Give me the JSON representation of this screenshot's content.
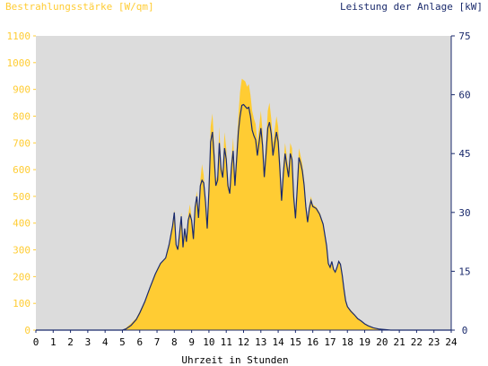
{
  "colors": {
    "irradiance": "#ffcc33",
    "power": "#1a2a6c",
    "plot_bg": "#dcdcdc",
    "page_bg": "#ffffff",
    "zero_line": "#1a2a6c"
  },
  "chart_data": {
    "type": "area",
    "title_left": "Bestrahlungsstärke [W/qm]",
    "title_right": "Leistung der Anlage [kW]",
    "xlabel": "Uhrzeit in Stunden",
    "xlim": [
      0,
      24
    ],
    "ylim_left": [
      0,
      1100
    ],
    "ylim_right": [
      0,
      75
    ],
    "x_ticks": [
      "0",
      "1",
      "2",
      "3",
      "4",
      "5",
      "6",
      "7",
      "8",
      "9",
      "10",
      "11",
      "12",
      "13",
      "14",
      "15",
      "16",
      "17",
      "18",
      "19",
      "20",
      "21",
      "22",
      "23",
      "24"
    ],
    "y_left_ticks": [
      "0",
      "100",
      "200",
      "300",
      "400",
      "500",
      "600",
      "700",
      "800",
      "900",
      "1000",
      "1100"
    ],
    "y_right_ticks": [
      "0",
      "15",
      "30",
      "45",
      "60",
      "75"
    ],
    "grid": false,
    "series": [
      {
        "name": "Bestrahlungsstärke",
        "axis": "left",
        "style": "area",
        "points": [
          [
            0,
            0
          ],
          [
            5.0,
            0
          ],
          [
            5.2,
            8
          ],
          [
            5.5,
            25
          ],
          [
            5.8,
            45
          ],
          [
            6.0,
            70
          ],
          [
            6.3,
            110
          ],
          [
            6.6,
            160
          ],
          [
            6.9,
            210
          ],
          [
            7.2,
            250
          ],
          [
            7.5,
            270
          ],
          [
            7.7,
            320
          ],
          [
            7.9,
            390
          ],
          [
            8.0,
            450
          ],
          [
            8.1,
            320
          ],
          [
            8.2,
            300
          ],
          [
            8.3,
            360
          ],
          [
            8.4,
            440
          ],
          [
            8.5,
            310
          ],
          [
            8.6,
            380
          ],
          [
            8.7,
            330
          ],
          [
            8.8,
            430
          ],
          [
            8.9,
            470
          ],
          [
            9.0,
            420
          ],
          [
            9.1,
            340
          ],
          [
            9.2,
            470
          ],
          [
            9.3,
            520
          ],
          [
            9.4,
            430
          ],
          [
            9.5,
            560
          ],
          [
            9.6,
            620
          ],
          [
            9.7,
            580
          ],
          [
            9.8,
            480
          ],
          [
            9.9,
            380
          ],
          [
            10.0,
            520
          ],
          [
            10.1,
            760
          ],
          [
            10.2,
            810
          ],
          [
            10.3,
            700
          ],
          [
            10.4,
            560
          ],
          [
            10.5,
            580
          ],
          [
            10.6,
            760
          ],
          [
            10.7,
            620
          ],
          [
            10.8,
            590
          ],
          [
            10.9,
            740
          ],
          [
            11.0,
            680
          ],
          [
            11.1,
            560
          ],
          [
            11.2,
            520
          ],
          [
            11.3,
            640
          ],
          [
            11.4,
            720
          ],
          [
            11.5,
            560
          ],
          [
            11.6,
            680
          ],
          [
            11.7,
            800
          ],
          [
            11.8,
            890
          ],
          [
            11.9,
            940
          ],
          [
            12.0,
            935
          ],
          [
            12.1,
            930
          ],
          [
            12.2,
            910
          ],
          [
            12.3,
            920
          ],
          [
            12.4,
            880
          ],
          [
            12.5,
            820
          ],
          [
            12.6,
            790
          ],
          [
            12.7,
            770
          ],
          [
            12.8,
            700
          ],
          [
            12.9,
            760
          ],
          [
            13.0,
            820
          ],
          [
            13.1,
            740
          ],
          [
            13.2,
            600
          ],
          [
            13.3,
            700
          ],
          [
            13.4,
            820
          ],
          [
            13.5,
            850
          ],
          [
            13.6,
            790
          ],
          [
            13.7,
            700
          ],
          [
            13.8,
            750
          ],
          [
            13.9,
            800
          ],
          [
            14.0,
            760
          ],
          [
            14.1,
            640
          ],
          [
            14.2,
            500
          ],
          [
            14.3,
            620
          ],
          [
            14.4,
            700
          ],
          [
            14.5,
            650
          ],
          [
            14.6,
            600
          ],
          [
            14.7,
            700
          ],
          [
            14.8,
            680
          ],
          [
            14.9,
            520
          ],
          [
            15.0,
            430
          ],
          [
            15.1,
            550
          ],
          [
            15.2,
            680
          ],
          [
            15.3,
            650
          ],
          [
            15.4,
            620
          ],
          [
            15.5,
            560
          ],
          [
            15.6,
            480
          ],
          [
            15.7,
            420
          ],
          [
            15.8,
            470
          ],
          [
            15.9,
            500
          ],
          [
            16.0,
            470
          ],
          [
            16.2,
            460
          ],
          [
            16.4,
            440
          ],
          [
            16.6,
            400
          ],
          [
            16.8,
            320
          ],
          [
            16.9,
            250
          ],
          [
            17.0,
            240
          ],
          [
            17.1,
            260
          ],
          [
            17.2,
            230
          ],
          [
            17.3,
            220
          ],
          [
            17.4,
            240
          ],
          [
            17.5,
            260
          ],
          [
            17.6,
            250
          ],
          [
            17.7,
            210
          ],
          [
            17.8,
            160
          ],
          [
            17.9,
            110
          ],
          [
            18.0,
            90
          ],
          [
            18.2,
            75
          ],
          [
            18.4,
            60
          ],
          [
            18.6,
            45
          ],
          [
            18.8,
            35
          ],
          [
            19.0,
            25
          ],
          [
            19.2,
            18
          ],
          [
            19.5,
            10
          ],
          [
            19.8,
            5
          ],
          [
            20.0,
            3
          ],
          [
            20.3,
            1
          ],
          [
            20.5,
            0
          ],
          [
            24,
            0
          ]
        ]
      },
      {
        "name": "Leistung der Anlage",
        "axis": "right",
        "style": "line",
        "points": [
          [
            0,
            0
          ],
          [
            5.0,
            0
          ],
          [
            5.2,
            0.3
          ],
          [
            5.5,
            1.2
          ],
          [
            5.8,
            2.7
          ],
          [
            6.0,
            4.4
          ],
          [
            6.3,
            7.3
          ],
          [
            6.6,
            10.9
          ],
          [
            6.9,
            14.3
          ],
          [
            7.2,
            17.0
          ],
          [
            7.5,
            18.4
          ],
          [
            7.7,
            21.8
          ],
          [
            7.9,
            26.6
          ],
          [
            8.0,
            30.0
          ],
          [
            8.1,
            21.8
          ],
          [
            8.2,
            20.5
          ],
          [
            8.3,
            24.5
          ],
          [
            8.4,
            29.0
          ],
          [
            8.5,
            21.1
          ],
          [
            8.6,
            25.9
          ],
          [
            8.7,
            22.5
          ],
          [
            8.8,
            28.0
          ],
          [
            8.9,
            29.5
          ],
          [
            9.0,
            28.0
          ],
          [
            9.1,
            23.2
          ],
          [
            9.2,
            31.4
          ],
          [
            9.3,
            34.1
          ],
          [
            9.4,
            28.6
          ],
          [
            9.5,
            36.8
          ],
          [
            9.6,
            38.2
          ],
          [
            9.7,
            37.5
          ],
          [
            9.8,
            32.7
          ],
          [
            9.9,
            25.9
          ],
          [
            10.0,
            35.5
          ],
          [
            10.1,
            48.0
          ],
          [
            10.2,
            50.5
          ],
          [
            10.3,
            44.3
          ],
          [
            10.4,
            36.8
          ],
          [
            10.5,
            38.2
          ],
          [
            10.6,
            47.7
          ],
          [
            10.7,
            40.9
          ],
          [
            10.8,
            38.9
          ],
          [
            10.9,
            46.4
          ],
          [
            11.0,
            43.6
          ],
          [
            11.1,
            36.8
          ],
          [
            11.2,
            34.8
          ],
          [
            11.3,
            41.6
          ],
          [
            11.4,
            45.7
          ],
          [
            11.5,
            36.8
          ],
          [
            11.6,
            43.6
          ],
          [
            11.7,
            50.5
          ],
          [
            11.8,
            54.5
          ],
          [
            11.9,
            57.3
          ],
          [
            12.0,
            57.5
          ],
          [
            12.1,
            57.0
          ],
          [
            12.2,
            56.5
          ],
          [
            12.3,
            56.8
          ],
          [
            12.4,
            54.5
          ],
          [
            12.5,
            51.0
          ],
          [
            12.6,
            49.5
          ],
          [
            12.7,
            48.5
          ],
          [
            12.8,
            44.5
          ],
          [
            12.9,
            48.0
          ],
          [
            13.0,
            51.5
          ],
          [
            13.1,
            47.0
          ],
          [
            13.2,
            39.0
          ],
          [
            13.3,
            45.0
          ],
          [
            13.4,
            51.5
          ],
          [
            13.5,
            53.0
          ],
          [
            13.6,
            50.0
          ],
          [
            13.7,
            44.5
          ],
          [
            13.8,
            47.5
          ],
          [
            13.9,
            50.5
          ],
          [
            14.0,
            48.0
          ],
          [
            14.1,
            41.0
          ],
          [
            14.2,
            33.0
          ],
          [
            14.3,
            40.0
          ],
          [
            14.4,
            45.0
          ],
          [
            14.5,
            42.0
          ],
          [
            14.6,
            39.0
          ],
          [
            14.7,
            45.0
          ],
          [
            14.8,
            43.5
          ],
          [
            14.9,
            34.0
          ],
          [
            15.0,
            28.5
          ],
          [
            15.1,
            36.0
          ],
          [
            15.2,
            44.0
          ],
          [
            15.3,
            42.5
          ],
          [
            15.4,
            40.5
          ],
          [
            15.5,
            37.0
          ],
          [
            15.6,
            31.5
          ],
          [
            15.7,
            27.5
          ],
          [
            15.8,
            31.0
          ],
          [
            15.9,
            33.0
          ],
          [
            16.0,
            31.5
          ],
          [
            16.2,
            31.0
          ],
          [
            16.4,
            29.5
          ],
          [
            16.6,
            27.0
          ],
          [
            16.8,
            21.5
          ],
          [
            16.9,
            17.0
          ],
          [
            17.0,
            16.0
          ],
          [
            17.1,
            17.5
          ],
          [
            17.2,
            15.5
          ],
          [
            17.3,
            14.8
          ],
          [
            17.4,
            16.0
          ],
          [
            17.5,
            17.5
          ],
          [
            17.6,
            16.8
          ],
          [
            17.7,
            14.0
          ],
          [
            17.8,
            10.5
          ],
          [
            17.9,
            7.5
          ],
          [
            18.0,
            6.0
          ],
          [
            18.2,
            4.8
          ],
          [
            18.4,
            3.9
          ],
          [
            18.6,
            2.9
          ],
          [
            18.8,
            2.3
          ],
          [
            19.0,
            1.6
          ],
          [
            19.2,
            1.1
          ],
          [
            19.5,
            0.6
          ],
          [
            19.8,
            0.3
          ],
          [
            20.0,
            0.2
          ],
          [
            20.3,
            0.1
          ],
          [
            20.5,
            0
          ],
          [
            24,
            0
          ]
        ]
      }
    ]
  }
}
